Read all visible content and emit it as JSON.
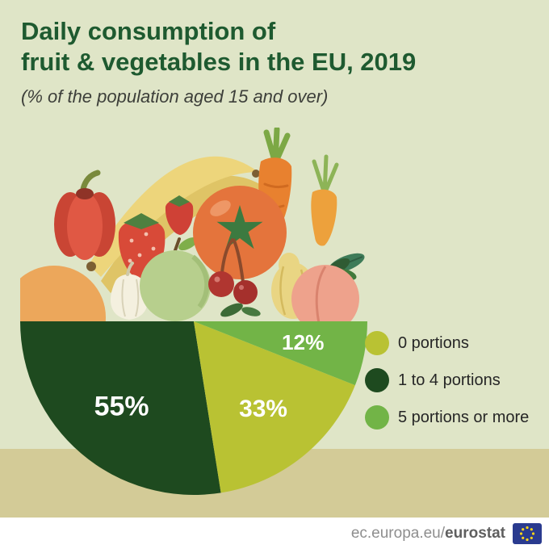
{
  "title": {
    "line1": "Daily consumption of",
    "line2": "fruit & vegetables in the EU, 2019",
    "subtitle": "(% of the population aged 15 and over)"
  },
  "chart_data": {
    "type": "pie",
    "variant": "semicircle",
    "title": "Daily consumption of fruit & vegetables in the EU, 2019",
    "subtitle": "(% of the population aged 15 and over)",
    "unit": "% of population aged 15 and over",
    "slices": [
      {
        "label": "1 to 4 portions",
        "value": 55,
        "display": "55%",
        "color": "#1e4a1f"
      },
      {
        "label": "0 portions",
        "value": 33,
        "display": "33%",
        "color": "#b9c233"
      },
      {
        "label": "5 portions or more",
        "value": 12,
        "display": "12%",
        "color": "#72b447"
      }
    ],
    "legend": [
      {
        "label": "0 portions",
        "color": "#b9c233"
      },
      {
        "label": "1 to 4 portions",
        "color": "#1e4a1f"
      },
      {
        "label": "5 portions or more",
        "color": "#72b447"
      }
    ],
    "legend_position": "right"
  },
  "footer": {
    "url_prefix": "ec.europa.eu/",
    "url_bold": "eurostat",
    "eu_flag": "eu-flag-logo"
  },
  "colors": {
    "background": "#dfe5c7",
    "band": "#d3cb97",
    "title": "#1e5a30",
    "footer_bg": "#ffffff",
    "eu_flag_bg": "#2a3b8f",
    "eu_flag_stars": "#ffd617"
  }
}
